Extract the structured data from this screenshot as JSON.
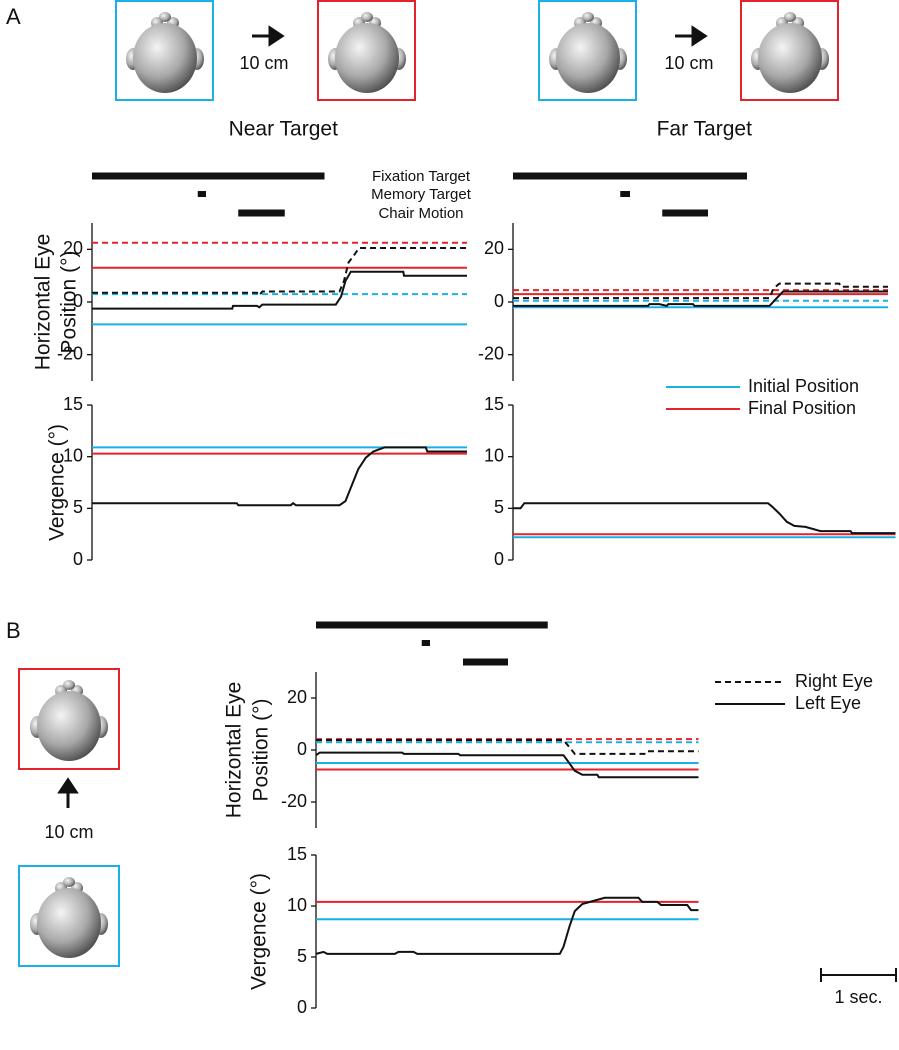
{
  "panel_labels": [
    "A",
    "B"
  ],
  "moves": [
    "10 cm",
    "10 cm",
    "10 cm"
  ],
  "event_labels": [
    "Fixation Target",
    "Memory Target",
    "Chair Motion"
  ],
  "legend_position": [
    {
      "label": "Initial Position",
      "color": "#1ab0e6"
    },
    {
      "label": "Final Position",
      "color": "#e3222a"
    }
  ],
  "legend_eye": [
    {
      "label": "Right Eye",
      "dash": true
    },
    {
      "label": "Left Eye",
      "dash": false
    }
  ],
  "scale_bar": {
    "label": "1 sec.",
    "length": 1
  },
  "chart_data": [
    {
      "type": "line",
      "title": "Near Target",
      "ylabel": [
        "Horizontal Eye",
        "Position (°)"
      ],
      "xlim": [
        0,
        5.1
      ],
      "ylim": [
        -30,
        30
      ],
      "yticks": [
        -20,
        0,
        20
      ],
      "events": [
        [
          0,
          3.1
        ],
        [
          1.41,
          1.52
        ],
        [
          1.95,
          2.57
        ]
      ],
      "series": [
        {
          "color": "#e3222a",
          "dash": true,
          "x": [
            0,
            5.0
          ],
          "values": [
            22.5,
            22.5
          ]
        },
        {
          "color": "#e3222a",
          "dash": false,
          "x": [
            0,
            5.0
          ],
          "values": [
            13,
            13
          ]
        },
        {
          "color": "#1ab0e6",
          "dash": true,
          "x": [
            0,
            5.0
          ],
          "values": [
            3,
            3
          ]
        },
        {
          "color": "#1ab0e6",
          "dash": false,
          "x": [
            0,
            5.0
          ],
          "values": [
            -8.5,
            -8.5
          ]
        },
        {
          "color": "#111111",
          "dash": true,
          "x": [
            0,
            2.2,
            2.23,
            2.27,
            3.3,
            3.36,
            3.42,
            3.5,
            3.56,
            5.0
          ],
          "values": [
            3.5,
            3.5,
            2.5,
            4,
            4,
            8,
            15,
            18,
            20.5,
            20.5
          ]
        },
        {
          "color": "#111111",
          "dash": false,
          "x": [
            0,
            1.87,
            1.88,
            2.2,
            2.23,
            2.27,
            3.25,
            3.32,
            3.38,
            3.45,
            4.15,
            4.16,
            5.0
          ],
          "values": [
            -2.5,
            -2.5,
            -1.5,
            -1.5,
            -2,
            -1,
            -1,
            2,
            8,
            11.5,
            11.5,
            10,
            10
          ]
        }
      ]
    },
    {
      "type": "line",
      "ylabel": [
        "Vergence (°)"
      ],
      "xlim": [
        0,
        5.1
      ],
      "ylim": [
        0,
        15
      ],
      "yticks": [
        0,
        5,
        10,
        15
      ],
      "series": [
        {
          "color": "#1ab0e6",
          "dash": false,
          "x": [
            0,
            5.0
          ],
          "values": [
            10.9,
            10.9
          ]
        },
        {
          "color": "#e3222a",
          "dash": false,
          "x": [
            0,
            5.0
          ],
          "values": [
            10.3,
            10.3
          ]
        },
        {
          "color": "#111111",
          "dash": false,
          "x": [
            0,
            1.93,
            1.95,
            2.65,
            2.68,
            2.72,
            3.3,
            3.38,
            3.45,
            3.55,
            3.65,
            3.75,
            3.9,
            4.45,
            4.47,
            5.0
          ],
          "values": [
            5.5,
            5.5,
            5.3,
            5.3,
            5.5,
            5.3,
            5.3,
            5.7,
            7,
            8.8,
            9.9,
            10.5,
            10.9,
            10.9,
            10.5,
            10.5
          ]
        }
      ]
    },
    {
      "type": "line",
      "title": "Far Target",
      "xlim": [
        0,
        5.1
      ],
      "ylim": [
        -30,
        30
      ],
      "yticks": [
        -20,
        0,
        20
      ],
      "events": [
        [
          0,
          3.12
        ],
        [
          1.43,
          1.56
        ],
        [
          1.99,
          2.6
        ]
      ],
      "series": [
        {
          "color": "#e3222a",
          "dash": true,
          "x": [
            0,
            5.0
          ],
          "values": [
            4.5,
            4.5
          ]
        },
        {
          "color": "#e3222a",
          "dash": false,
          "x": [
            0,
            5.0
          ],
          "values": [
            3,
            3
          ]
        },
        {
          "color": "#1ab0e6",
          "dash": true,
          "x": [
            0,
            5.0
          ],
          "values": [
            0.5,
            0.5
          ]
        },
        {
          "color": "#1ab0e6",
          "dash": false,
          "x": [
            0,
            5.0
          ],
          "values": [
            -2,
            -2
          ]
        },
        {
          "color": "#111111",
          "dash": true,
          "x": [
            0,
            3.42,
            3.47,
            3.55,
            4.35,
            4.37,
            5.0
          ],
          "values": [
            1.5,
            1.5,
            5,
            7,
            7,
            5.8,
            5.8
          ]
        },
        {
          "color": "#111111",
          "dash": false,
          "x": [
            0,
            1.8,
            1.82,
            1.95,
            2.05,
            2.07,
            2.4,
            2.42,
            3.42,
            3.5,
            3.6,
            5.0
          ],
          "values": [
            -1.5,
            -1.5,
            -0.8,
            -0.8,
            -1.5,
            -0.8,
            -0.8,
            -1.5,
            -1.5,
            1,
            4,
            4
          ]
        }
      ]
    },
    {
      "type": "line",
      "xlim": [
        0,
        5.1
      ],
      "ylim": [
        0,
        15
      ],
      "yticks": [
        0,
        5,
        10,
        15
      ],
      "series": [
        {
          "color": "#e3222a",
          "dash": false,
          "x": [
            0,
            5.1
          ],
          "values": [
            2.5,
            2.5
          ]
        },
        {
          "color": "#1ab0e6",
          "dash": false,
          "x": [
            0,
            5.1
          ],
          "values": [
            2.2,
            2.2
          ]
        },
        {
          "color": "#111111",
          "dash": false,
          "x": [
            0,
            0.1,
            0.15,
            3.4,
            3.45,
            3.55,
            3.65,
            3.75,
            3.9,
            4.1,
            4.5,
            4.52,
            5.1
          ],
          "values": [
            5,
            5,
            5.5,
            5.5,
            5.2,
            4.5,
            3.7,
            3.3,
            3.2,
            2.8,
            2.8,
            2.6,
            2.6
          ]
        }
      ]
    },
    {
      "type": "line",
      "ylabel": [
        "Horizontal Eye",
        "Position (°)"
      ],
      "xlim": [
        0,
        5.1
      ],
      "ylim": [
        -30,
        30
      ],
      "yticks": [
        -20,
        0,
        20
      ],
      "events": [
        [
          0,
          3.09
        ],
        [
          1.41,
          1.52
        ],
        [
          1.96,
          2.56
        ]
      ],
      "series": [
        {
          "color": "#e3222a",
          "dash": true,
          "x": [
            0,
            5.1
          ],
          "values": [
            4.2,
            4.2
          ]
        },
        {
          "color": "#1ab0e6",
          "dash": true,
          "x": [
            0,
            5.1
          ],
          "values": [
            3,
            3
          ]
        },
        {
          "color": "#1ab0e6",
          "dash": false,
          "x": [
            0,
            5.1
          ],
          "values": [
            -5,
            -5
          ]
        },
        {
          "color": "#e3222a",
          "dash": false,
          "x": [
            0,
            5.1
          ],
          "values": [
            -7.5,
            -7.5
          ]
        },
        {
          "color": "#111111",
          "dash": true,
          "x": [
            0,
            3.3,
            3.38,
            3.45,
            4.4,
            4.42,
            5.1
          ],
          "values": [
            3.8,
            3.8,
            1,
            -1.5,
            -1.5,
            -0.5,
            -0.5
          ]
        },
        {
          "color": "#111111",
          "dash": false,
          "x": [
            0,
            0.05,
            1.15,
            1.17,
            1.9,
            1.92,
            3.3,
            3.35,
            3.45,
            3.55,
            3.75,
            3.77,
            5.1
          ],
          "values": [
            -2,
            -1,
            -1,
            -1.5,
            -1.5,
            -2,
            -2,
            -4,
            -8,
            -9.5,
            -9.5,
            -10.5,
            -10.5
          ]
        }
      ]
    },
    {
      "type": "line",
      "ylabel": [
        "Vergence (°)"
      ],
      "xlim": [
        0,
        5.1
      ],
      "ylim": [
        0,
        15
      ],
      "yticks": [
        0,
        5,
        10,
        15
      ],
      "series": [
        {
          "color": "#e3222a",
          "dash": false,
          "x": [
            0,
            5.1
          ],
          "values": [
            10.4,
            10.4
          ]
        },
        {
          "color": "#1ab0e6",
          "dash": false,
          "x": [
            0,
            5.1
          ],
          "values": [
            8.7,
            8.7
          ]
        },
        {
          "color": "#111111",
          "dash": false,
          "x": [
            0,
            0.1,
            0.15,
            1.05,
            1.1,
            1.3,
            1.35,
            3.25,
            3.3,
            3.38,
            3.45,
            3.55,
            3.7,
            3.85,
            4.3,
            4.35,
            4.55,
            4.6,
            4.95,
            5.0,
            5.1
          ],
          "values": [
            5.3,
            5.5,
            5.3,
            5.3,
            5.5,
            5.5,
            5.3,
            5.3,
            6,
            8,
            9.5,
            10.2,
            10.5,
            10.8,
            10.8,
            10.4,
            10.4,
            10.1,
            10.1,
            9.6,
            9.6
          ]
        }
      ]
    }
  ]
}
